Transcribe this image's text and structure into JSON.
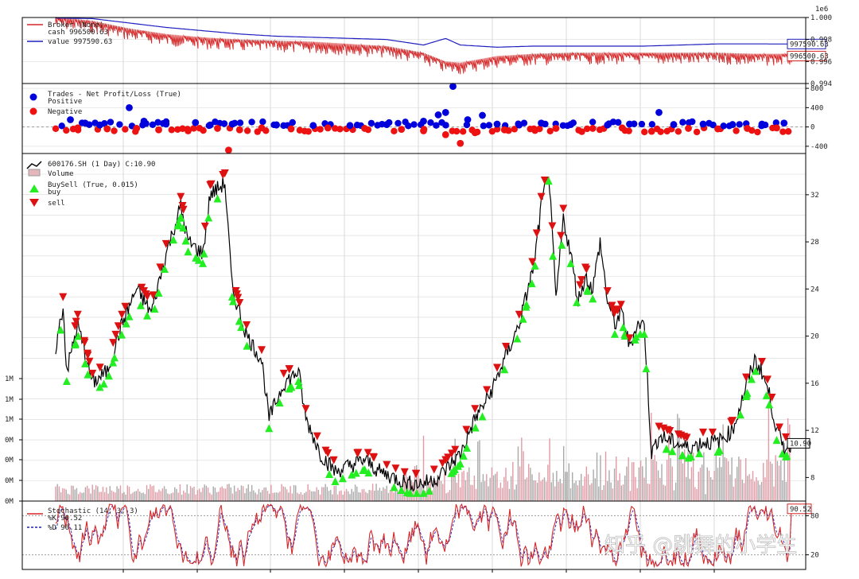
{
  "chart_data": [
    {
      "type": "line",
      "panel": "broker",
      "scale_label": "1e6",
      "legend": [
        "Broker (None)",
        "cash 996500.63",
        "value 997590.63"
      ],
      "ylim": [
        0.994,
        1.0
      ],
      "yticks": [
        "1.000",
        "0.998",
        "0.996",
        "0.994"
      ],
      "series": [
        {
          "name": "cash",
          "color": "#d62728",
          "last_label": "996500.63",
          "points": [
            [
              0,
              0.99985
            ],
            [
              0.05,
              0.9995
            ],
            [
              0.1,
              0.9988
            ],
            [
              0.15,
              0.9983
            ],
            [
              0.2,
              0.998
            ],
            [
              0.25,
              0.9978
            ],
            [
              0.3,
              0.9977
            ],
            [
              0.35,
              0.9976
            ],
            [
              0.4,
              0.9974
            ],
            [
              0.45,
              0.9972
            ],
            [
              0.5,
              0.9966
            ],
            [
              0.53,
              0.9958
            ],
            [
              0.55,
              0.9957
            ],
            [
              0.6,
              0.9963
            ],
            [
              0.65,
              0.9965
            ],
            [
              0.7,
              0.9966
            ],
            [
              0.75,
              0.9966
            ],
            [
              0.8,
              0.9966
            ],
            [
              0.85,
              0.9966
            ],
            [
              0.9,
              0.9966
            ],
            [
              0.95,
              0.9965
            ],
            [
              1,
              0.9965
            ]
          ]
        },
        {
          "name": "value",
          "color": "#1f1fbf",
          "last_label": "997590.63",
          "points": [
            [
              0,
              0.99995
            ],
            [
              0.05,
              0.9999
            ],
            [
              0.1,
              0.9995
            ],
            [
              0.15,
              0.9991
            ],
            [
              0.2,
              0.9988
            ],
            [
              0.25,
              0.9985
            ],
            [
              0.3,
              0.9983
            ],
            [
              0.35,
              0.9982
            ],
            [
              0.4,
              0.9981
            ],
            [
              0.45,
              0.998
            ],
            [
              0.5,
              0.9975
            ],
            [
              0.53,
              0.9981
            ],
            [
              0.55,
              0.9975
            ],
            [
              0.6,
              0.9973
            ],
            [
              0.65,
              0.9974
            ],
            [
              0.7,
              0.9974
            ],
            [
              0.75,
              0.9974
            ],
            [
              0.8,
              0.9974
            ],
            [
              0.85,
              0.9975
            ],
            [
              0.9,
              0.9976
            ],
            [
              0.95,
              0.9976
            ],
            [
              1,
              0.99759
            ]
          ]
        }
      ]
    },
    {
      "type": "scatter",
      "panel": "trades",
      "legend": [
        "Trades - Net Profit/Loss (True)",
        "Positive",
        "Negative"
      ],
      "ylim": [
        -550,
        900
      ],
      "yticks": [
        "800",
        "400",
        "0",
        "-400"
      ],
      "series": [
        {
          "name": "Positive",
          "color": "#0000dd",
          "points": [
            [
              0.02,
              150
            ],
            [
              0.04,
              80
            ],
            [
              0.06,
              40
            ],
            [
              0.1,
              400
            ],
            [
              0.12,
              120
            ],
            [
              0.15,
              60
            ],
            [
              0.19,
              90
            ],
            [
              0.21,
              40
            ],
            [
              0.24,
              60
            ],
            [
              0.3,
              40
            ],
            [
              0.35,
              30
            ],
            [
              0.4,
              30
            ],
            [
              0.45,
              50
            ],
            [
              0.5,
              120
            ],
            [
              0.52,
              250
            ],
            [
              0.53,
              300
            ],
            [
              0.56,
              150
            ],
            [
              0.58,
              240
            ],
            [
              0.6,
              60
            ],
            [
              0.63,
              40
            ],
            [
              0.66,
              80
            ],
            [
              0.7,
              50
            ],
            [
              0.75,
              40
            ],
            [
              0.78,
              60
            ],
            [
              0.82,
              300
            ],
            [
              0.84,
              50
            ],
            [
              0.88,
              60
            ],
            [
              0.92,
              50
            ],
            [
              0.96,
              60
            ],
            [
              0.99,
              80
            ]
          ]
        },
        {
          "name": "Negative",
          "color": "#ee1111",
          "points": [
            [
              0.03,
              -20
            ],
            [
              0.07,
              -40
            ],
            [
              0.11,
              -30
            ],
            [
              0.14,
              -60
            ],
            [
              0.18,
              -80
            ],
            [
              0.22,
              -30
            ],
            [
              0.25,
              -60
            ],
            [
              0.28,
              -20
            ],
            [
              0.32,
              -40
            ],
            [
              0.37,
              -20
            ],
            [
              0.42,
              -30
            ],
            [
              0.47,
              -50
            ],
            [
              0.5,
              -80
            ],
            [
              0.53,
              -160
            ],
            [
              0.55,
              -340
            ],
            [
              0.57,
              -120
            ],
            [
              0.61,
              -60
            ],
            [
              0.65,
              -40
            ],
            [
              0.68,
              -30
            ],
            [
              0.73,
              -30
            ],
            [
              0.77,
              -20
            ],
            [
              0.81,
              -90
            ],
            [
              0.86,
              -30
            ],
            [
              0.9,
              -40
            ],
            [
              0.94,
              -30
            ],
            [
              0.98,
              -20
            ],
            [
              0.235,
              -480
            ]
          ]
        }
      ],
      "outliers": [
        [
          0.54,
          840
        ]
      ]
    },
    {
      "type": "line",
      "panel": "price",
      "legend": [
        "600176.SH (1 Day) C:10.90",
        "Volume",
        "BuySell (True, 0.015)",
        "buy",
        "sell"
      ],
      "last_close_label": "10.90",
      "ylim": [
        6,
        35.5
      ],
      "yticks": [
        "32",
        "28",
        "24",
        "20",
        "16",
        "12",
        "8"
      ],
      "volume_ticks": [
        "1M",
        "1M",
        "1M",
        "0M",
        "0M",
        "0M",
        "0M"
      ],
      "close": [
        [
          0,
          19
        ],
        [
          0.01,
          22.5
        ],
        [
          0.015,
          17
        ],
        [
          0.03,
          21
        ],
        [
          0.05,
          16
        ],
        [
          0.07,
          17
        ],
        [
          0.09,
          21
        ],
        [
          0.11,
          24
        ],
        [
          0.13,
          22
        ],
        [
          0.15,
          27
        ],
        [
          0.17,
          31
        ],
        [
          0.18,
          28
        ],
        [
          0.2,
          27
        ],
        [
          0.21,
          32
        ],
        [
          0.23,
          33
        ],
        [
          0.24,
          24
        ],
        [
          0.26,
          20
        ],
        [
          0.28,
          18
        ],
        [
          0.29,
          13
        ],
        [
          0.31,
          16
        ],
        [
          0.33,
          17
        ],
        [
          0.34,
          13
        ],
        [
          0.36,
          10
        ],
        [
          0.38,
          8.5
        ],
        [
          0.4,
          9
        ],
        [
          0.42,
          9.5
        ],
        [
          0.44,
          8.5
        ],
        [
          0.46,
          8
        ],
        [
          0.48,
          7.5
        ],
        [
          0.5,
          7.5
        ],
        [
          0.52,
          8
        ],
        [
          0.55,
          10
        ],
        [
          0.57,
          13
        ],
        [
          0.59,
          15
        ],
        [
          0.61,
          18
        ],
        [
          0.63,
          21
        ],
        [
          0.65,
          26
        ],
        [
          0.66,
          31
        ],
        [
          0.67,
          34
        ],
        [
          0.68,
          23
        ],
        [
          0.69,
          30
        ],
        [
          0.7,
          27
        ],
        [
          0.71,
          23
        ],
        [
          0.72,
          25
        ],
        [
          0.73,
          24
        ],
        [
          0.74,
          28
        ],
        [
          0.75,
          23
        ],
        [
          0.76,
          21
        ],
        [
          0.77,
          22
        ],
        [
          0.78,
          19
        ],
        [
          0.79,
          21
        ],
        [
          0.8,
          21
        ],
        [
          0.81,
          10
        ],
        [
          0.82,
          11.5
        ],
        [
          0.84,
          11
        ],
        [
          0.86,
          10.5
        ],
        [
          0.88,
          11
        ],
        [
          0.9,
          11
        ],
        [
          0.92,
          12
        ],
        [
          0.93,
          14
        ],
        [
          0.95,
          18
        ],
        [
          0.96,
          17
        ],
        [
          0.97,
          15
        ],
        [
          0.98,
          12
        ],
        [
          0.99,
          10.5
        ],
        [
          1.0,
          10.9
        ]
      ],
      "buys": [
        0.015,
        0.04,
        0.06,
        0.08,
        0.1,
        0.14,
        0.16,
        0.18,
        0.2,
        0.22,
        0.26,
        0.29,
        0.33,
        0.38,
        0.42,
        0.46,
        0.5,
        0.55,
        0.58,
        0.61,
        0.64,
        0.67,
        0.7,
        0.73,
        0.76,
        0.8,
        0.83,
        0.86,
        0.9,
        0.94,
        0.98
      ],
      "sells": [
        0.01,
        0.03,
        0.05,
        0.09,
        0.12,
        0.15,
        0.17,
        0.21,
        0.23,
        0.25,
        0.28,
        0.31,
        0.34,
        0.37,
        0.41,
        0.45,
        0.49,
        0.53,
        0.57,
        0.6,
        0.63,
        0.66,
        0.69,
        0.72,
        0.75,
        0.78,
        0.82,
        0.85,
        0.88,
        0.92,
        0.96
      ]
    },
    {
      "type": "line",
      "panel": "stochastic",
      "legend": [
        "Stochastic (14, 3, 3)",
        "%K 90.52",
        "%D 90.11"
      ],
      "last_label": "90.52",
      "ylim": [
        0,
        100
      ],
      "yticks": [
        "80",
        "20"
      ],
      "series": [
        {
          "name": "%K",
          "color": "#d62728"
        },
        {
          "name": "%D",
          "color": "#1f1fbf"
        }
      ]
    }
  ],
  "watermark": "知乎 @跳舞的小学生"
}
